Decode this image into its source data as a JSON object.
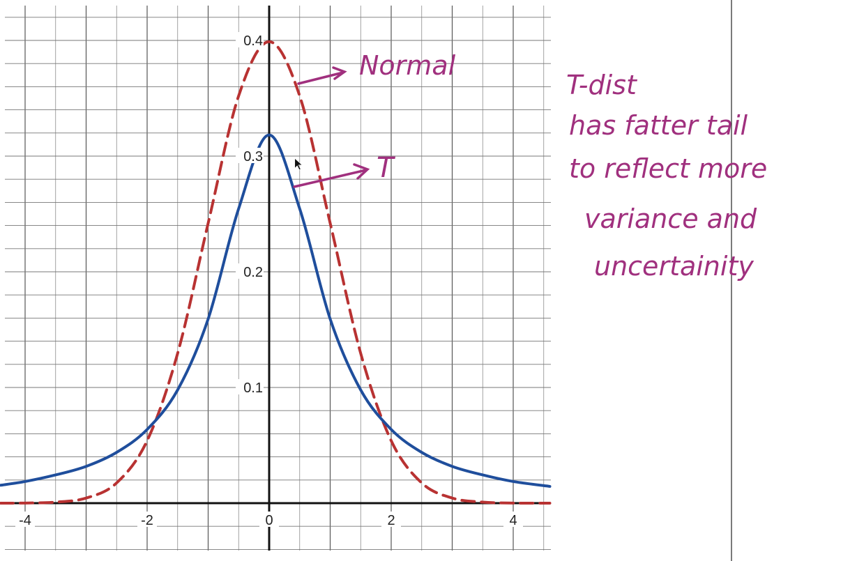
{
  "chart_data": {
    "type": "line",
    "title": "",
    "xlabel": "",
    "ylabel": "",
    "xlim": [
      -4.4,
      4.6
    ],
    "ylim": [
      0,
      0.43
    ],
    "grid": true,
    "x_ticks": [
      -4,
      -2,
      0,
      2,
      4
    ],
    "x_tick_labels": [
      "-4",
      "-2",
      "0",
      "2",
      "4"
    ],
    "y_ticks": [
      0.1,
      0.2,
      0.3,
      0.4
    ],
    "y_tick_labels": [
      "0.1",
      "0.2",
      "0.3",
      "0.4"
    ],
    "series": [
      {
        "style": "dashed",
        "color": "#b83232",
        "x": [
          -4.4,
          -4.0,
          -3.5,
          -3.0,
          -2.5,
          -2.0,
          -1.5,
          -1.0,
          -0.5,
          0.0,
          0.5,
          1.0,
          1.5,
          2.0,
          2.5,
          3.0,
          3.5,
          4.0,
          4.6
        ],
        "y": [
          0.0,
          0.0001,
          0.0009,
          0.0044,
          0.0175,
          0.054,
          0.1295,
          0.242,
          0.3521,
          0.3989,
          0.3521,
          0.242,
          0.1295,
          0.054,
          0.0175,
          0.0044,
          0.0009,
          0.0001,
          0.0
        ]
      },
      {
        "style": "solid",
        "color": "#1f4e9c",
        "x": [
          -4.4,
          -4.0,
          -3.5,
          -3.0,
          -2.5,
          -2.0,
          -1.5,
          -1.0,
          -0.5,
          0.0,
          0.5,
          1.0,
          1.5,
          2.0,
          2.5,
          3.0,
          3.5,
          4.0,
          4.6
        ],
        "y": [
          0.0155,
          0.0187,
          0.0244,
          0.0318,
          0.0439,
          0.0637,
          0.0979,
          0.1592,
          0.2546,
          0.3183,
          0.2546,
          0.1592,
          0.0979,
          0.0637,
          0.0439,
          0.0318,
          0.0244,
          0.0187,
          0.0145
        ]
      }
    ],
    "annotations": {
      "normal_label": "Normal",
      "t_label": "T",
      "note_lines": [
        "T-dist",
        "has fatter tail",
        "to reflect more",
        "variance and",
        "uncertainity"
      ],
      "annotation_color": "#a0307e"
    }
  }
}
